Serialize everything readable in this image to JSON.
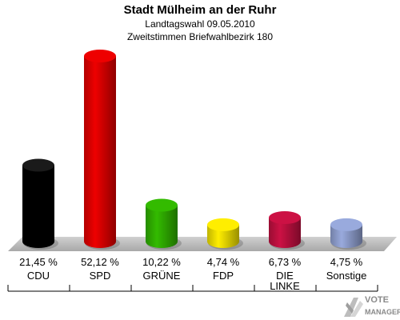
{
  "header": {
    "title": "Stadt Mülheim an der Ruhr",
    "subtitle": "Landtagswahl 09.05.2010",
    "subtitle2": "Zweitstimmen Briefwahlbezirk 180"
  },
  "chart_data": {
    "type": "bar",
    "categories": [
      "CDU",
      "SPD",
      "GRÜNE",
      "FDP",
      "DIE LINKE",
      "Sonstige"
    ],
    "values": [
      21.45,
      52.12,
      10.22,
      4.74,
      6.73,
      4.75
    ],
    "value_labels": [
      "21,45 %",
      "52,12 %",
      "10,22 %",
      "4,74 %",
      "6,73 %",
      "4,75 %"
    ],
    "colors": [
      "#000000",
      "#ee0000",
      "#33bb00",
      "#ffee00",
      "#cc1144",
      "#99aadd"
    ],
    "ylim": [
      0,
      52.12
    ],
    "grid": false,
    "legend": "none"
  },
  "logo": {
    "name": "VOTE",
    "sub": "MANAGER",
    "icon": "vote-manager-logo"
  }
}
